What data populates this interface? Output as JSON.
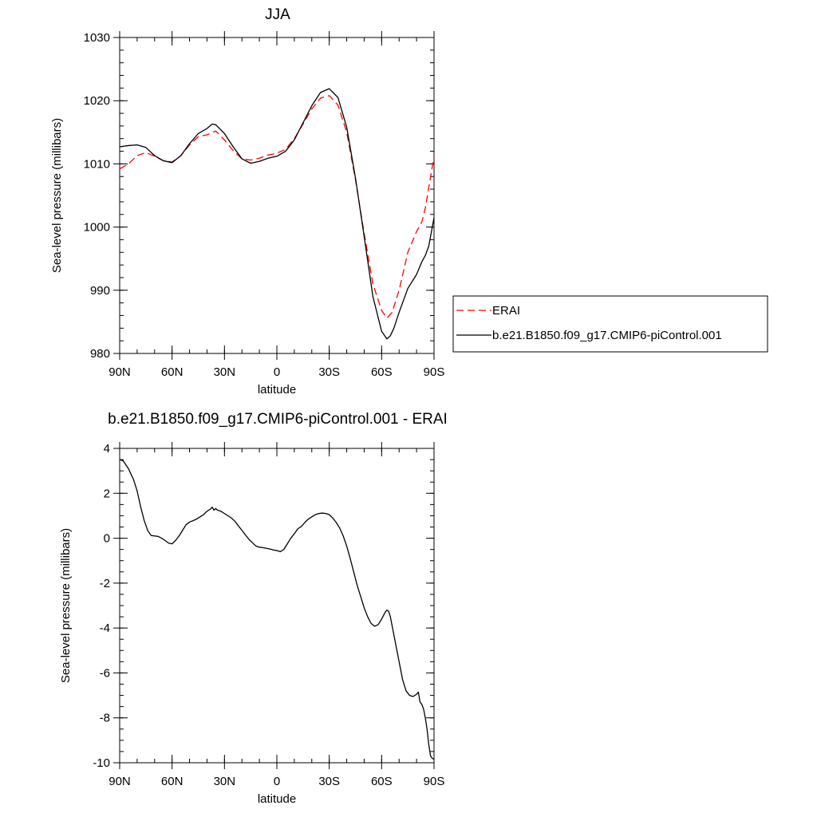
{
  "chart_data": [
    {
      "type": "line",
      "title": "JJA",
      "xlabel": "latitude",
      "ylabel": "Sea-level pressure (millibars)",
      "xlim": [
        90,
        -90
      ],
      "ylim": [
        980,
        1030
      ],
      "x_ticks": [
        {
          "value": 90,
          "label": "90N"
        },
        {
          "value": 60,
          "label": "60N"
        },
        {
          "value": 30,
          "label": "30N"
        },
        {
          "value": 0,
          "label": "0"
        },
        {
          "value": -30,
          "label": "30S"
        },
        {
          "value": -60,
          "label": "60S"
        },
        {
          "value": -90,
          "label": "90S"
        }
      ],
      "y_ticks": [
        {
          "value": 980,
          "label": "980"
        },
        {
          "value": 990,
          "label": "990"
        },
        {
          "value": 1000,
          "label": "1000"
        },
        {
          "value": 1010,
          "label": "1010"
        },
        {
          "value": 1020,
          "label": "1020"
        },
        {
          "value": 1030,
          "label": "1030"
        }
      ],
      "legend_placement": "right",
      "series": [
        {
          "name": "ERAI",
          "color": "#ff0000",
          "dash": true,
          "x": [
            90,
            85,
            80,
            75,
            70,
            65,
            60,
            55,
            50,
            45,
            40,
            35,
            30,
            25,
            20,
            15,
            10,
            5,
            0,
            -5,
            -10,
            -15,
            -20,
            -25,
            -30,
            -35,
            -40,
            -45,
            -50,
            -55,
            -60,
            -63,
            -66,
            -70,
            -75,
            -80,
            -83,
            -85,
            -90
          ],
          "y": [
            1009.2,
            1010.0,
            1011.3,
            1011.8,
            1011.2,
            1010.5,
            1010.3,
            1011.3,
            1013.0,
            1014.3,
            1014.6,
            1015.2,
            1013.8,
            1012.1,
            1010.8,
            1010.6,
            1010.9,
            1011.4,
            1011.7,
            1012.3,
            1014.0,
            1016.3,
            1018.7,
            1020.4,
            1020.8,
            1019.3,
            1015.0,
            1007.5,
            999.0,
            991.0,
            986.8,
            985.6,
            986.5,
            990.0,
            996.0,
            999.3,
            1000.8,
            1003.0,
            1011.2
          ]
        },
        {
          "name": "b.e21.B1850.f09_g17.CMIP6-piControl.001",
          "color": "#000000",
          "dash": false,
          "x": [
            90,
            85,
            80,
            75,
            70,
            65,
            60,
            55,
            50,
            45,
            40,
            37,
            35,
            30,
            25,
            20,
            15,
            10,
            5,
            0,
            -5,
            -10,
            -15,
            -20,
            -25,
            -30,
            -35,
            -40,
            -45,
            -50,
            -55,
            -60,
            -63,
            -65,
            -67,
            -70,
            -75,
            -80,
            -83,
            -85,
            -87,
            -90
          ],
          "y": [
            1012.7,
            1012.9,
            1013.0,
            1012.6,
            1011.3,
            1010.5,
            1010.2,
            1011.3,
            1013.2,
            1014.8,
            1015.6,
            1016.3,
            1016.2,
            1014.8,
            1012.7,
            1010.8,
            1010.1,
            1010.4,
            1010.9,
            1011.2,
            1012.0,
            1013.8,
            1016.5,
            1019.2,
            1021.3,
            1021.9,
            1020.5,
            1015.8,
            1007.8,
            998.5,
            989.0,
            983.5,
            982.3,
            982.8,
            984.0,
            986.5,
            990.3,
            992.5,
            994.5,
            995.5,
            997.0,
            1001.5
          ]
        }
      ]
    },
    {
      "type": "line",
      "title": "b.e21.B1850.f09_g17.CMIP6-piControl.001 - ERAI",
      "xlabel": "latitude",
      "ylabel": "Sea-level pressure (millibars)",
      "xlim": [
        90,
        -90
      ],
      "ylim": [
        -10,
        4
      ],
      "x_ticks": [
        {
          "value": 90,
          "label": "90N"
        },
        {
          "value": 60,
          "label": "60N"
        },
        {
          "value": 30,
          "label": "30N"
        },
        {
          "value": 0,
          "label": "0"
        },
        {
          "value": -30,
          "label": "30S"
        },
        {
          "value": -60,
          "label": "60S"
        },
        {
          "value": -90,
          "label": "90S"
        }
      ],
      "y_ticks": [
        {
          "value": -10,
          "label": "-10"
        },
        {
          "value": -8,
          "label": "-8"
        },
        {
          "value": -6,
          "label": "-6"
        },
        {
          "value": -4,
          "label": "-4"
        },
        {
          "value": -2,
          "label": "-2"
        },
        {
          "value": 0,
          "label": "0"
        },
        {
          "value": 2,
          "label": "2"
        },
        {
          "value": 4,
          "label": "4"
        }
      ],
      "series": [
        {
          "color": "#000000",
          "dash": false,
          "x": [
            90,
            88,
            85,
            82,
            80,
            78,
            76,
            74,
            72,
            70,
            68,
            66,
            64,
            62,
            60,
            58,
            56,
            54,
            52,
            50,
            48,
            46,
            44,
            42,
            40,
            38,
            37,
            36,
            35,
            34,
            32,
            30,
            28,
            26,
            24,
            22,
            20,
            18,
            16,
            14,
            12,
            10,
            8,
            6,
            4,
            2,
            0,
            -2,
            -4,
            -6,
            -8,
            -10,
            -12,
            -14,
            -16,
            -18,
            -20,
            -22,
            -24,
            -26,
            -28,
            -30,
            -32,
            -34,
            -36,
            -38,
            -40,
            -42,
            -44,
            -46,
            -48,
            -50,
            -52,
            -54,
            -56,
            -58,
            -60,
            -62,
            -63,
            -64,
            -65,
            -66,
            -67,
            -68,
            -70,
            -72,
            -74,
            -76,
            -78,
            -80,
            -81,
            -82,
            -83,
            -84,
            -85,
            -86,
            -87,
            -88,
            -89,
            -90
          ],
          "y": [
            3.5,
            3.45,
            3.1,
            2.6,
            2.1,
            1.4,
            0.8,
            0.35,
            0.12,
            0.1,
            0.08,
            0.0,
            -0.1,
            -0.22,
            -0.25,
            -0.1,
            0.1,
            0.35,
            0.6,
            0.72,
            0.78,
            0.85,
            0.95,
            1.05,
            1.2,
            1.3,
            1.38,
            1.25,
            1.32,
            1.25,
            1.2,
            1.1,
            1.0,
            0.9,
            0.75,
            0.55,
            0.35,
            0.15,
            -0.05,
            -0.2,
            -0.35,
            -0.4,
            -0.42,
            -0.45,
            -0.48,
            -0.52,
            -0.55,
            -0.6,
            -0.5,
            -0.25,
            0.0,
            0.2,
            0.42,
            0.52,
            0.7,
            0.85,
            0.95,
            1.05,
            1.1,
            1.12,
            1.1,
            1.05,
            0.9,
            0.7,
            0.45,
            0.1,
            -0.35,
            -0.9,
            -1.5,
            -2.1,
            -2.6,
            -3.1,
            -3.5,
            -3.8,
            -3.92,
            -3.85,
            -3.6,
            -3.3,
            -3.2,
            -3.25,
            -3.5,
            -3.9,
            -4.3,
            -4.7,
            -5.5,
            -6.3,
            -6.8,
            -7.0,
            -7.05,
            -6.95,
            -6.85,
            -7.3,
            -7.4,
            -7.6,
            -8.0,
            -8.5,
            -9.2,
            -9.7,
            -9.8,
            -9.85
          ]
        }
      ]
    }
  ]
}
